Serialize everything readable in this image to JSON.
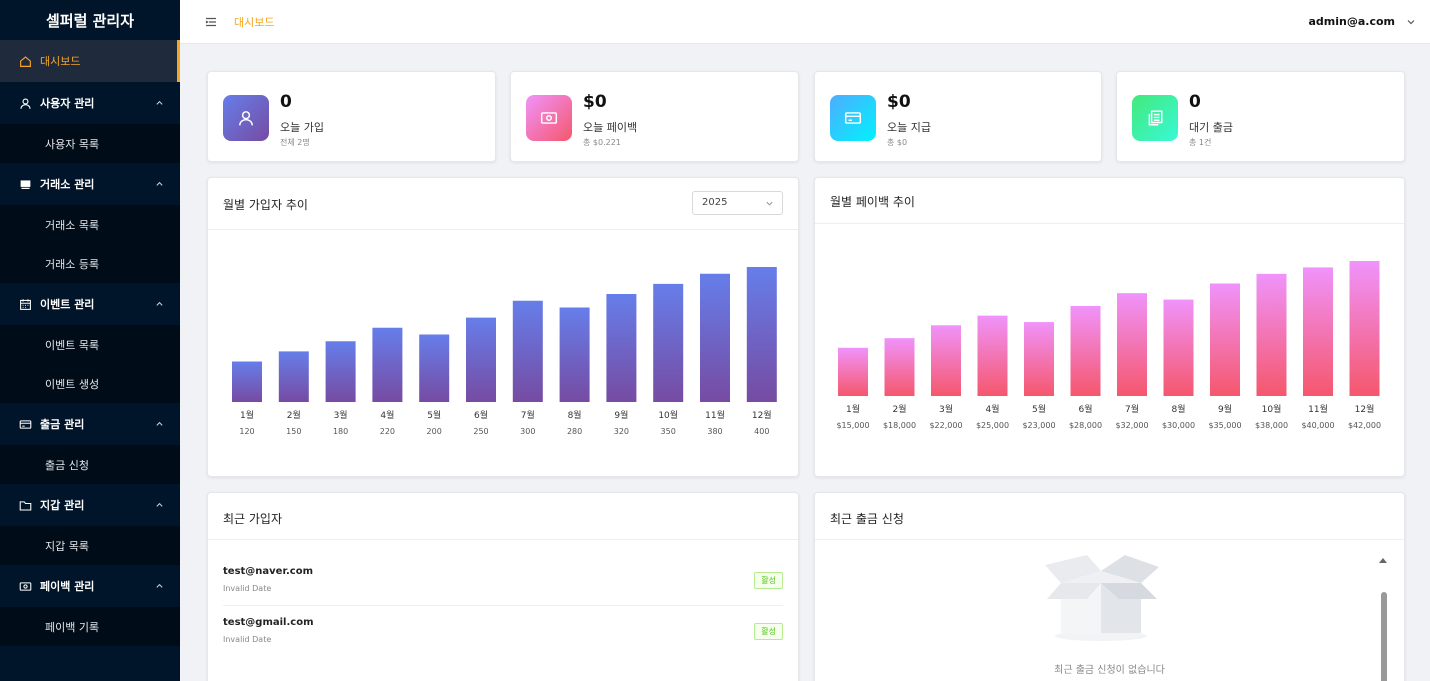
{
  "sidebar": {
    "logo": "셀퍼럴 관리자",
    "items": [
      {
        "label": "대시보드",
        "icon": "home-icon",
        "active": true
      },
      {
        "label": "사용자 관리",
        "icon": "user-icon",
        "sub": [
          "사용자 목록"
        ]
      },
      {
        "label": "거래소 관리",
        "icon": "shop-icon",
        "sub": [
          "거래소 목록",
          "거래소 등록"
        ]
      },
      {
        "label": "이벤트 관리",
        "icon": "calendar-icon",
        "sub": [
          "이벤트 목록",
          "이벤트 생성"
        ]
      },
      {
        "label": "출금 관리",
        "icon": "card-icon",
        "sub": [
          "출금 신청"
        ]
      },
      {
        "label": "지갑 관리",
        "icon": "folder-icon",
        "sub": [
          "지갑 목록"
        ]
      },
      {
        "label": "페이백 관리",
        "icon": "money-icon",
        "sub": [
          "페이백 기록"
        ]
      }
    ]
  },
  "header": {
    "breadcrumb": "대시보드",
    "user": "admin@a.com"
  },
  "stats": [
    {
      "value": "0",
      "label": "오늘 가입",
      "sub": "전체 2명",
      "icon": "user-icon",
      "color_from": "#667eea",
      "color_to": "#764ba2"
    },
    {
      "value": "$0",
      "label": "오늘 페이백",
      "sub": "총 $0.221",
      "icon": "money-icon",
      "color_from": "#f093fb",
      "color_to": "#f5576c"
    },
    {
      "value": "$0",
      "label": "오늘 지급",
      "sub": "총 $0",
      "icon": "card-icon",
      "color_from": "#4facfe",
      "color_to": "#00f2fe"
    },
    {
      "value": "0",
      "label": "대기 출금",
      "sub": "총 1건",
      "icon": "copy-icon",
      "color_from": "#43e97b",
      "color_to": "#38f9d7"
    }
  ],
  "signup_chart": {
    "title": "월별 가입자 추이",
    "year": "2025"
  },
  "payback_chart": {
    "title": "월별 페이백 추이"
  },
  "chart_data": [
    {
      "type": "bar",
      "title": "월별 가입자 추이",
      "categories": [
        "1월",
        "2월",
        "3월",
        "4월",
        "5월",
        "6월",
        "7월",
        "8월",
        "9월",
        "10월",
        "11월",
        "12월"
      ],
      "values": [
        120,
        150,
        180,
        220,
        200,
        250,
        300,
        280,
        320,
        350,
        380,
        400
      ],
      "value_labels": [
        "120",
        "150",
        "180",
        "220",
        "200",
        "250",
        "300",
        "280",
        "320",
        "350",
        "380",
        "400"
      ],
      "ylim": [
        0,
        400
      ],
      "colors": [
        "#667eea",
        "#764ba2"
      ]
    },
    {
      "type": "bar",
      "title": "월별 페이백 추이",
      "categories": [
        "1월",
        "2월",
        "3월",
        "4월",
        "5월",
        "6월",
        "7월",
        "8월",
        "9월",
        "10월",
        "11월",
        "12월"
      ],
      "values": [
        15000,
        18000,
        22000,
        25000,
        23000,
        28000,
        32000,
        30000,
        35000,
        38000,
        40000,
        42000
      ],
      "value_labels": [
        "$15,000",
        "$18,000",
        "$22,000",
        "$25,000",
        "$23,000",
        "$28,000",
        "$32,000",
        "$30,000",
        "$35,000",
        "$38,000",
        "$40,000",
        "$42,000"
      ],
      "ylim": [
        0,
        42000
      ],
      "colors": [
        "#f093fb",
        "#f5576c"
      ]
    }
  ],
  "recent_users": {
    "title": "최근 가입자",
    "rows": [
      {
        "email": "test@naver.com",
        "date": "Invalid Date",
        "status": "활성"
      },
      {
        "email": "test@gmail.com",
        "date": "Invalid Date",
        "status": "활성"
      }
    ]
  },
  "recent_withdrawals": {
    "title": "최근 출금 신청",
    "empty": "최근 출금 신청이 없습니다"
  }
}
